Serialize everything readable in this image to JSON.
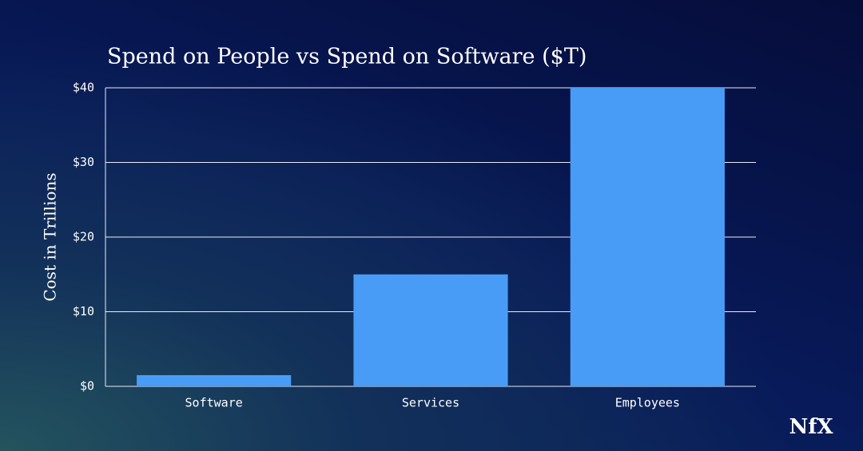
{
  "chart_data": {
    "type": "bar",
    "title": "Spend on People vs Spend on Software ($T)",
    "y_label": "Cost in Trillions",
    "categories": [
      "Software",
      "Services",
      "Employees"
    ],
    "values": [
      1.5,
      15,
      40
    ],
    "color": "#489cf5",
    "ylim": [
      0,
      40
    ],
    "yticks": [
      {
        "value": 0,
        "label": "$0"
      },
      {
        "value": 10,
        "label": "$10"
      },
      {
        "value": 20,
        "label": "$20"
      },
      {
        "value": 30,
        "label": "$30"
      },
      {
        "value": 40,
        "label": "$40"
      }
    ],
    "grid": true
  },
  "logo": "NfX"
}
